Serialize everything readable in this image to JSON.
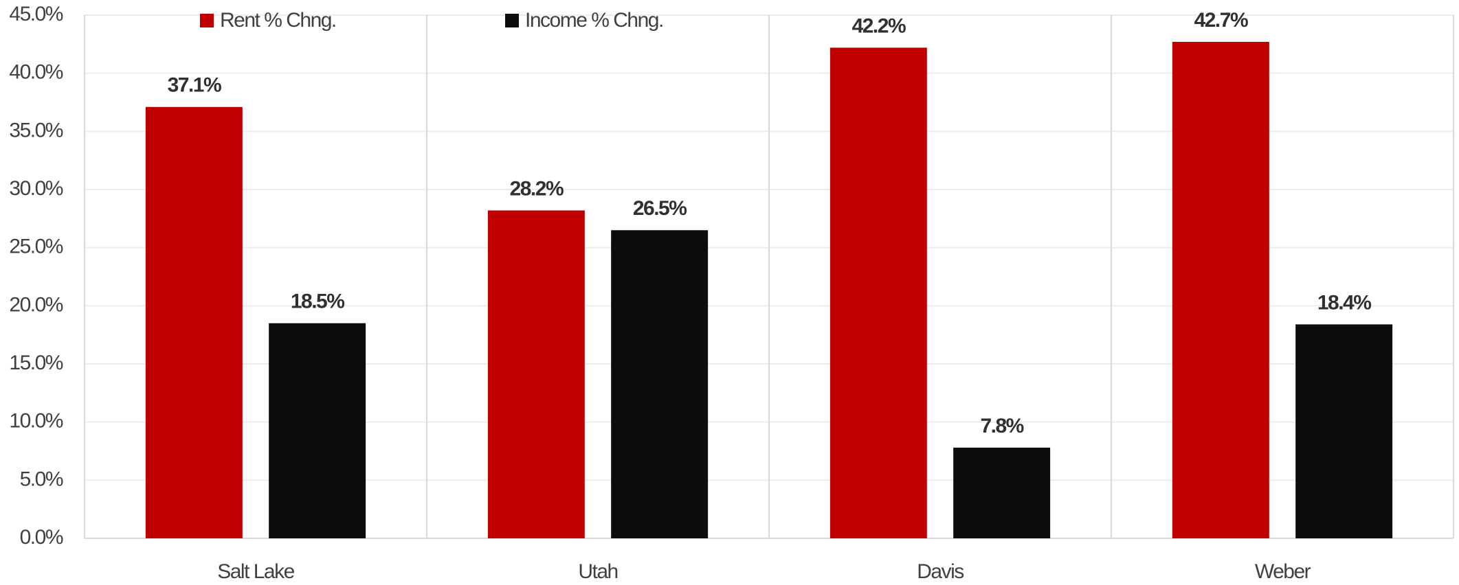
{
  "chart_data": {
    "type": "bar",
    "categories": [
      "Salt Lake",
      "Utah",
      "Davis",
      "Weber"
    ],
    "series": [
      {
        "name": "Rent % Chng.",
        "color": "#c00000",
        "values": [
          37.1,
          28.2,
          42.2,
          42.7
        ],
        "value_labels": [
          "37.1%",
          "28.2%",
          "42.2%",
          "42.7%"
        ]
      },
      {
        "name": "Income % Chng.",
        "color": "#0d0d0d",
        "values": [
          18.5,
          26.5,
          7.8,
          18.4
        ],
        "value_labels": [
          "18.5%",
          "26.5%",
          "7.8%",
          "18.4%"
        ]
      }
    ],
    "ylim": [
      0,
      45
    ],
    "yticks": [
      {
        "value": 0,
        "label": "0.0%"
      },
      {
        "value": 5,
        "label": "5.0%"
      },
      {
        "value": 10,
        "label": "10.0%"
      },
      {
        "value": 15,
        "label": "15.0%"
      },
      {
        "value": 20,
        "label": "20.0%"
      },
      {
        "value": 25,
        "label": "25.0%"
      },
      {
        "value": 30,
        "label": "30.0%"
      },
      {
        "value": 35,
        "label": "35.0%"
      },
      {
        "value": 40,
        "label": "40.0%"
      },
      {
        "value": 45,
        "label": "45.0%"
      }
    ],
    "grid": true,
    "legend": "top"
  }
}
